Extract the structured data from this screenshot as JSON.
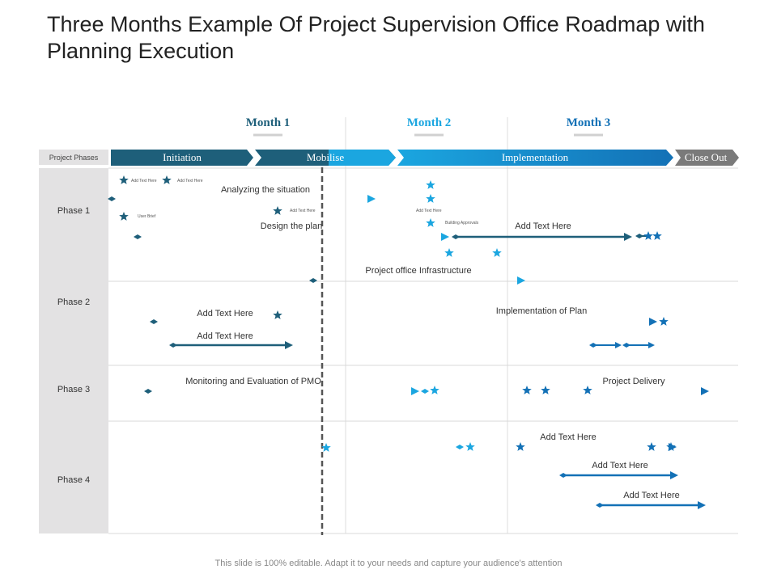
{
  "title": "Three Months Example Of Project Supervision Office Roadmap with Planning Execution",
  "footer": "This slide is 100% editable. Adapt it to your needs and capture your audience's attention",
  "months": [
    "Month 1",
    "Month 2",
    "Month 3"
  ],
  "header_label": "Project Phases",
  "phases_bar": [
    "Initiation",
    "Mobilise",
    "Implementation",
    "Close Out"
  ],
  "phases": [
    "Phase 1",
    "Phase 2",
    "Phase 3",
    "Phase 4"
  ],
  "labels": {
    "analyzing": "Analyzing the situation",
    "design": "Design the plan",
    "add_text_p1": "Add Text Here",
    "infrastructure": "Project office Infrastructure",
    "add_text_p2a": "Add Text Here",
    "impl_plan": "Implementation of Plan",
    "add_text_p2b": "Add Text Here",
    "monitoring": "Monitoring and Evaluation of  PMO",
    "delivery": "Project Delivery",
    "add_text_p4a": "Add Text Here",
    "add_text_p4b": "Add Text Here",
    "add_text_p4c": "Add Text Here"
  },
  "tiny_labels": {
    "t1": "Add Text Here",
    "t2": "Add Text Here",
    "t3": "User Brief",
    "t4": "Add Text Here",
    "t5": "Add Text Here",
    "t6": "Building Approvals"
  },
  "colors": {
    "dark_teal": "#1e5f7a",
    "bright_blue": "#1ba6e0",
    "mid_blue": "#1371b6",
    "close_out": "#7a7a7a",
    "left_panel": "#e3e2e3"
  }
}
